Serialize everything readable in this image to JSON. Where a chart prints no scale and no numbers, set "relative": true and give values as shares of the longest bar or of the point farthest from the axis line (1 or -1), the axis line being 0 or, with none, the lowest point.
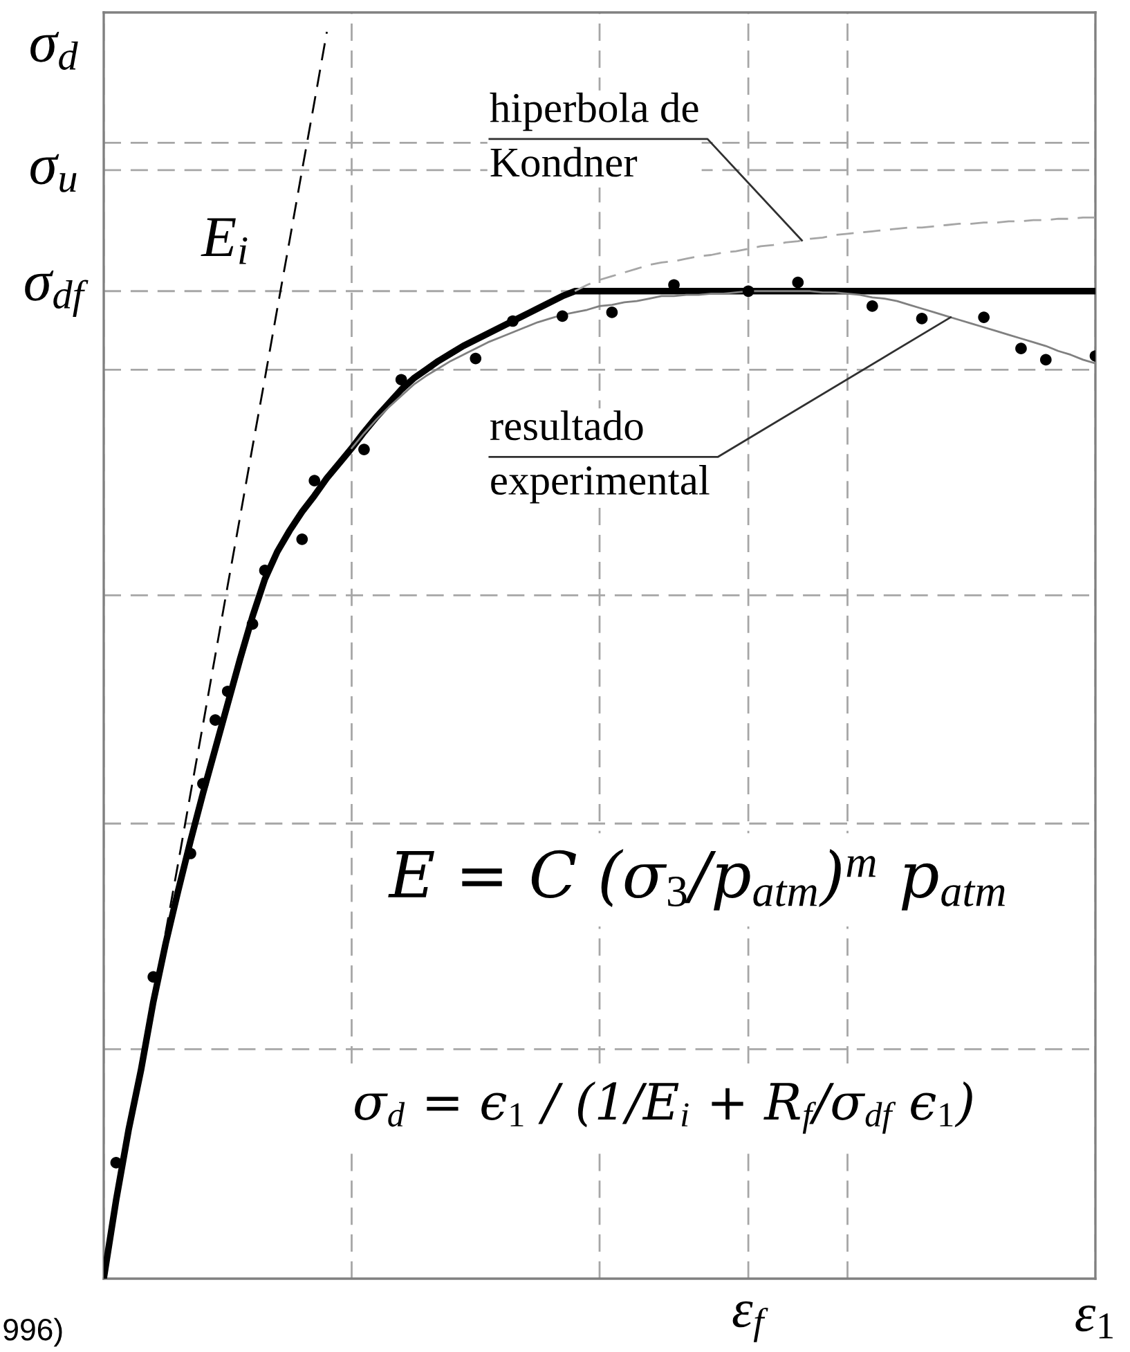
{
  "chart_data": {
    "type": "line",
    "relative": true,
    "ylabel": "σ$_{d}$",
    "categories": [
      null,
      null,
      null,
      null,
      null,
      null,
      null,
      null,
      null,
      null,
      null,
      null,
      null,
      null,
      null,
      null,
      null,
      null,
      null,
      null,
      null,
      null,
      null,
      null,
      null,
      null,
      null,
      null,
      null,
      null,
      null,
      null,
      null,
      null,
      null,
      null,
      null,
      null,
      null,
      null,
      null,
      null,
      null,
      null,
      null,
      null,
      null,
      null,
      null,
      null,
      null,
      null,
      "ε$_{f}$",
      null,
      null,
      null,
      null,
      null,
      null,
      null,
      null,
      null,
      null,
      null,
      null,
      null,
      null,
      null,
      null,
      null,
      null,
      null,
      null,
      null,
      null,
      null,
      null,
      null,
      null,
      null,
      "ε$_{1}$"
    ],
    "tick_labels": "x",
    "grid": "x",
    "legend": false,
    "ref_lines": [
      {
        "axis": "y",
        "value": 0.184,
        "label": null,
        "color": "#a6a6a6",
        "line_style": "dashed"
      },
      {
        "axis": "y",
        "value": 0.365,
        "label": null,
        "color": "#a6a6a6",
        "line_style": "dashed"
      },
      {
        "axis": "y",
        "value": 0.548,
        "label": null,
        "color": "#a6a6a6",
        "line_style": "dashed"
      },
      {
        "axis": "y",
        "value": 0.729,
        "label": null,
        "color": "#a6a6a6",
        "line_style": "dashed"
      },
      {
        "axis": "y",
        "value": 0.792,
        "label": "σ$_{df}$",
        "color": "#a6a6a6",
        "line_style": "dashed"
      },
      {
        "axis": "y",
        "value": 0.889,
        "label": "σ$_{u}$",
        "color": "#a6a6a6",
        "line_style": "dashed"
      },
      {
        "axis": "y",
        "value": 0.911,
        "label": null,
        "color": "#a6a6a6",
        "line_style": "dashed"
      }
    ],
    "series": [
      {
        "name": "E$_{i}$",
        "color": "#000000",
        "line_style": "dashed",
        "values": [
          0,
          0.056,
          0.111,
          0.167,
          0.222,
          0.278,
          0.333,
          0.389,
          0.444,
          0.5,
          0.556,
          0.611,
          0.667,
          0.722,
          0.778,
          0.833,
          0.889,
          0.944,
          1.0,
          null,
          null,
          null,
          null,
          null,
          null,
          null,
          null,
          null,
          null,
          null,
          null,
          null,
          null,
          null,
          null,
          null,
          null,
          null,
          null,
          null,
          null,
          null,
          null,
          null,
          null,
          null,
          null,
          null,
          null,
          null,
          null,
          null,
          null,
          null,
          null,
          null,
          null,
          null,
          null,
          null,
          null,
          null,
          null,
          null,
          null,
          null,
          null,
          null,
          null,
          null,
          null,
          null,
          null,
          null,
          null,
          null,
          null,
          null,
          null,
          null,
          null
        ]
      },
      {
        "color": "#000000",
        "line_style": "solid",
        "values": [
          0,
          0.063,
          0.119,
          0.167,
          0.222,
          0.269,
          0.311,
          0.351,
          0.389,
          0.425,
          0.461,
          0.497,
          0.531,
          0.561,
          0.583,
          0.6,
          0.615,
          0.628,
          0.642,
          0.654,
          0.666,
          0.679,
          0.691,
          0.702,
          0.713,
          0.722,
          0.729,
          0.736,
          0.742,
          0.748,
          0.753,
          0.758,
          0.763,
          0.768,
          0.773,
          0.778,
          0.783,
          0.788,
          0.792,
          0.792,
          0.792,
          0.792,
          0.792,
          0.792,
          0.792,
          0.792,
          0.792,
          0.792,
          0.792,
          0.792,
          0.792,
          0.792,
          0.792,
          0.792,
          0.792,
          0.792,
          0.792,
          0.792,
          0.792,
          0.792,
          0.792,
          0.792,
          0.792,
          0.792,
          0.792,
          0.792,
          0.792,
          0.792,
          0.792,
          0.792,
          0.792,
          0.792,
          0.792,
          0.792,
          0.792,
          0.792,
          0.792,
          0.792,
          0.792,
          0.792,
          0.792
        ]
      },
      {
        "name": "hiperbola de\nKondner",
        "color": "#a6a6a6",
        "line_style": "dashed",
        "values": [
          null,
          null,
          null,
          null,
          null,
          null,
          null,
          null,
          null,
          null,
          null,
          null,
          null,
          null,
          null,
          null,
          null,
          null,
          null,
          null,
          null,
          null,
          null,
          null,
          null,
          null,
          null,
          null,
          null,
          null,
          null,
          null,
          null,
          null,
          null,
          null,
          null,
          null,
          0.792,
          0.797,
          0.801,
          0.804,
          0.807,
          0.81,
          0.813,
          0.815,
          0.816,
          0.818,
          0.82,
          0.821,
          0.823,
          0.824,
          0.826,
          0.828,
          0.829,
          0.831,
          0.832,
          0.834,
          0.835,
          0.837,
          0.838,
          0.839,
          0.84,
          0.841,
          0.842,
          0.843,
          0.843,
          0.844,
          0.845,
          0.846,
          0.846,
          0.847,
          0.847,
          0.848,
          0.848,
          0.849,
          0.849,
          0.85,
          0.85,
          0.851,
          0.851
        ]
      },
      {
        "name": "resultado\nexperimental",
        "color": "#808080",
        "line_style": "solid",
        "values": [
          null,
          null,
          null,
          null,
          null,
          null,
          null,
          null,
          null,
          null,
          null,
          null,
          null,
          null,
          null,
          null,
          null,
          null,
          null,
          null,
          0.666,
          0.678,
          0.689,
          0.699,
          0.708,
          0.717,
          0.724,
          0.73,
          0.736,
          0.741,
          0.746,
          0.751,
          0.755,
          0.759,
          0.763,
          0.767,
          0.77,
          0.773,
          0.775,
          0.777,
          0.78,
          0.781,
          0.783,
          0.784,
          0.786,
          0.788,
          0.788,
          0.789,
          0.789,
          0.79,
          0.79,
          0.791,
          0.792,
          0.792,
          0.792,
          0.792,
          0.792,
          0.792,
          0.791,
          0.791,
          0.79,
          0.789,
          0.787,
          0.786,
          0.784,
          0.781,
          0.778,
          0.775,
          0.772,
          0.769,
          0.766,
          0.763,
          0.76,
          0.757,
          0.754,
          0.751,
          0.748,
          0.744,
          0.741,
          0.737,
          0.734
        ]
      },
      {
        "type": "scatter",
        "color": "#000000",
        "marker": "circle",
        "values": [
          null,
          0.093,
          null,
          null,
          0.242,
          null,
          null,
          0.341,
          0.397,
          0.448,
          0.471,
          null,
          0.525,
          0.568,
          null,
          null,
          0.593,
          0.64,
          null,
          null,
          null,
          0.665,
          null,
          null,
          0.721,
          null,
          null,
          null,
          null,
          null,
          0.738,
          null,
          null,
          0.768,
          null,
          null,
          null,
          0.772,
          null,
          null,
          null,
          0.775,
          null,
          null,
          null,
          null,
          0.797,
          null,
          null,
          null,
          null,
          null,
          0.792,
          null,
          null,
          null,
          0.799,
          null,
          null,
          null,
          null,
          null,
          0.78,
          null,
          null,
          null,
          0.77,
          null,
          null,
          null,
          null,
          0.771,
          null,
          null,
          0.746,
          null,
          0.737,
          null,
          null,
          null,
          0.74
        ]
      }
    ],
    "annotations": [
      "E = C (σ$_{3}$/p$_{atm}$)$^{m}$ p$_{atm}$",
      "σ$_{d}$ = ϵ$_{1}$ / (1/E$_{i}$ + R$_{f}$/σ$_{df}$ ϵ$_{1}$)",
      "996)"
    ]
  }
}
